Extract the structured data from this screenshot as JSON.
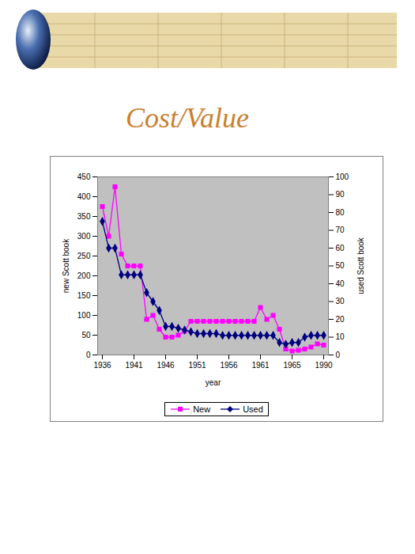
{
  "chart_data": {
    "type": "line",
    "title": "Cost/Value",
    "x_label": "year",
    "y_label": "new Scott book",
    "y2_label": "used Scott book",
    "categories": [
      1936,
      null,
      null,
      null,
      null,
      1941,
      null,
      null,
      null,
      null,
      1946,
      null,
      null,
      null,
      null,
      1951,
      null,
      null,
      null,
      null,
      1956,
      null,
      null,
      null,
      null,
      1961,
      null,
      null,
      null,
      null,
      1965,
      null,
      null,
      null,
      null,
      1990
    ],
    "series": [
      {
        "name": "New",
        "color": "#ff00ff",
        "marker": "square",
        "values": [
          375,
          300,
          425,
          255,
          225,
          225,
          225,
          90,
          100,
          65,
          45,
          45,
          50,
          60,
          85,
          85,
          85,
          85,
          85,
          85,
          85,
          85,
          85,
          85,
          85,
          120,
          90,
          100,
          65,
          15,
          10,
          12,
          15,
          20,
          28,
          25
        ]
      },
      {
        "name": "Used",
        "color": "#000080",
        "marker": "diamond",
        "axis": "y2",
        "values": [
          75,
          60,
          60,
          45,
          45,
          45,
          45,
          35,
          30,
          25,
          16,
          16,
          15,
          14,
          13,
          12,
          12,
          12,
          12,
          11,
          11,
          11,
          11,
          11,
          11,
          11,
          11,
          11,
          7,
          6,
          7,
          7,
          10,
          11,
          11,
          11
        ]
      }
    ],
    "ylim": [
      0,
      450
    ],
    "yticks": [
      0,
      50,
      100,
      150,
      200,
      250,
      300,
      350,
      400,
      450
    ],
    "y2lim": [
      0,
      100
    ],
    "y2ticks": [
      0,
      10,
      20,
      30,
      40,
      50,
      60,
      70,
      80,
      90,
      100
    ],
    "grid": false,
    "legend": "bottom"
  }
}
